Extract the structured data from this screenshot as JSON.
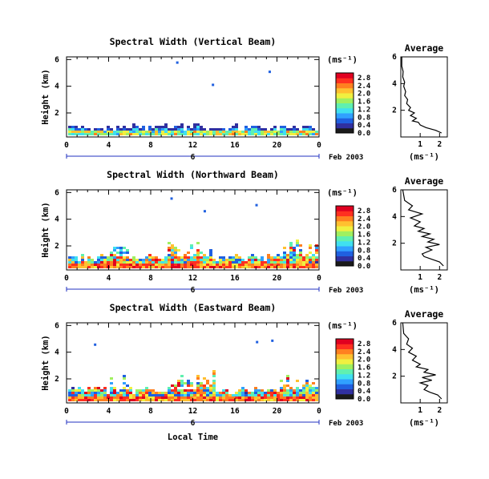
{
  "figure": {
    "date_label": "Feb 2003",
    "xlabel_bottom": "Local Time",
    "colors": {
      "colormap": [
        "#1a1a1a",
        "#3030a0",
        "#2060e0",
        "#30a0ff",
        "#40e0f0",
        "#60f0b0",
        "#a0f060",
        "#f0f040",
        "#ffc030",
        "#ff8020",
        "#ff3020",
        "#e00020"
      ]
    }
  },
  "chart_data": [
    {
      "type": "heatmap",
      "title": "Spectral Width (Vertical Beam)",
      "ylabel": "Height (km)",
      "xlabel": "",
      "x_ticks": [
        "0",
        "4",
        "8",
        "12",
        "16",
        "20",
        "0"
      ],
      "y_ticks": [
        "2",
        "4",
        "6"
      ],
      "xlim": [
        0,
        24
      ],
      "ylim": [
        0.2,
        6.2
      ],
      "secondary_axis_tick": "6",
      "colorbar": {
        "label": "(ms⁻¹)",
        "ticks": [
          "0.0",
          "0.4",
          "0.8",
          "1.2",
          "1.6",
          "2.0",
          "2.4",
          "2.8"
        ],
        "range": [
          0,
          3.0
        ]
      },
      "average_panel": {
        "title": "Average",
        "xlabel": "(ms⁻¹)",
        "x_ticks": [
          "1",
          "2"
        ],
        "y_ticks": [
          "2",
          "4",
          "6"
        ],
        "xlim": [
          0,
          2.4
        ],
        "ylim": [
          0,
          6
        ],
        "profile": [
          [
            2.1,
            0.3
          ],
          [
            1.8,
            0.5
          ],
          [
            1.3,
            0.7
          ],
          [
            1.0,
            0.9
          ],
          [
            0.9,
            1.1
          ],
          [
            0.6,
            1.2
          ],
          [
            0.8,
            1.4
          ],
          [
            0.5,
            1.6
          ],
          [
            0.7,
            1.8
          ],
          [
            0.4,
            2.0
          ],
          [
            0.5,
            2.2
          ],
          [
            0.3,
            2.5
          ],
          [
            0.35,
            2.8
          ],
          [
            0.2,
            3.1
          ],
          [
            0.25,
            3.4
          ],
          [
            0.15,
            3.8
          ],
          [
            0.2,
            4.1
          ],
          [
            0.1,
            4.5
          ],
          [
            0.12,
            4.9
          ],
          [
            0.05,
            5.3
          ],
          [
            0.05,
            6.0
          ]
        ]
      }
    },
    {
      "type": "heatmap",
      "title": "Spectral Width (Northward Beam)",
      "ylabel": "Height (km)",
      "xlabel": "",
      "x_ticks": [
        "0",
        "4",
        "8",
        "12",
        "16",
        "20",
        "0"
      ],
      "y_ticks": [
        "2",
        "4",
        "6"
      ],
      "xlim": [
        0,
        24
      ],
      "ylim": [
        0.2,
        6.2
      ],
      "secondary_axis_tick": "6",
      "colorbar": {
        "label": "(ms⁻¹)",
        "ticks": [
          "0.0",
          "0.4",
          "0.8",
          "1.2",
          "1.6",
          "2.0",
          "2.4",
          "2.8"
        ],
        "range": [
          0,
          3.0
        ]
      },
      "average_panel": {
        "title": "Average",
        "xlabel": "(ms⁻¹)",
        "x_ticks": [
          "1",
          "2"
        ],
        "y_ticks": [
          "2",
          "4",
          "6"
        ],
        "xlim": [
          0,
          2.4
        ],
        "ylim": [
          0,
          6
        ],
        "profile": [
          [
            2.2,
            0.3
          ],
          [
            2.0,
            0.6
          ],
          [
            1.6,
            0.8
          ],
          [
            1.2,
            1.0
          ],
          [
            1.1,
            1.2
          ],
          [
            1.6,
            1.5
          ],
          [
            1.3,
            1.7
          ],
          [
            2.0,
            1.9
          ],
          [
            1.4,
            2.1
          ],
          [
            1.7,
            2.3
          ],
          [
            1.1,
            2.5
          ],
          [
            1.5,
            2.7
          ],
          [
            0.9,
            2.9
          ],
          [
            1.2,
            3.1
          ],
          [
            0.7,
            3.3
          ],
          [
            1.0,
            3.6
          ],
          [
            0.5,
            3.9
          ],
          [
            1.1,
            4.2
          ],
          [
            0.4,
            4.5
          ],
          [
            0.6,
            4.8
          ],
          [
            0.2,
            5.2
          ],
          [
            0.1,
            6.0
          ]
        ]
      }
    },
    {
      "type": "heatmap",
      "title": "Spectral Width (Eastward Beam)",
      "ylabel": "Height (km)",
      "xlabel": "Local Time",
      "x_ticks": [
        "0",
        "4",
        "8",
        "12",
        "16",
        "20",
        "0"
      ],
      "y_ticks": [
        "2",
        "4",
        "6"
      ],
      "xlim": [
        0,
        24
      ],
      "ylim": [
        0.2,
        6.2
      ],
      "secondary_axis_tick": "6",
      "colorbar": {
        "label": "(ms⁻¹)",
        "ticks": [
          "0.0",
          "0.4",
          "0.8",
          "1.2",
          "1.6",
          "2.0",
          "2.4",
          "2.8"
        ],
        "range": [
          0,
          3.0
        ]
      },
      "average_panel": {
        "title": "Average",
        "xlabel": "(ms⁻¹)",
        "x_ticks": [
          "1",
          "2"
        ],
        "y_ticks": [
          "2",
          "4",
          "6"
        ],
        "xlim": [
          0,
          2.4
        ],
        "ylim": [
          0,
          6
        ],
        "profile": [
          [
            2.1,
            0.3
          ],
          [
            1.9,
            0.6
          ],
          [
            1.5,
            0.8
          ],
          [
            1.2,
            1.0
          ],
          [
            1.4,
            1.3
          ],
          [
            1.0,
            1.5
          ],
          [
            1.6,
            1.7
          ],
          [
            1.1,
            1.9
          ],
          [
            1.8,
            2.1
          ],
          [
            1.2,
            2.3
          ],
          [
            1.4,
            2.5
          ],
          [
            0.8,
            2.7
          ],
          [
            1.0,
            2.9
          ],
          [
            0.6,
            3.2
          ],
          [
            0.8,
            3.5
          ],
          [
            0.4,
            3.8
          ],
          [
            0.6,
            4.1
          ],
          [
            0.3,
            4.4
          ],
          [
            0.4,
            4.8
          ],
          [
            0.15,
            5.2
          ],
          [
            0.1,
            6.0
          ]
        ]
      }
    }
  ]
}
